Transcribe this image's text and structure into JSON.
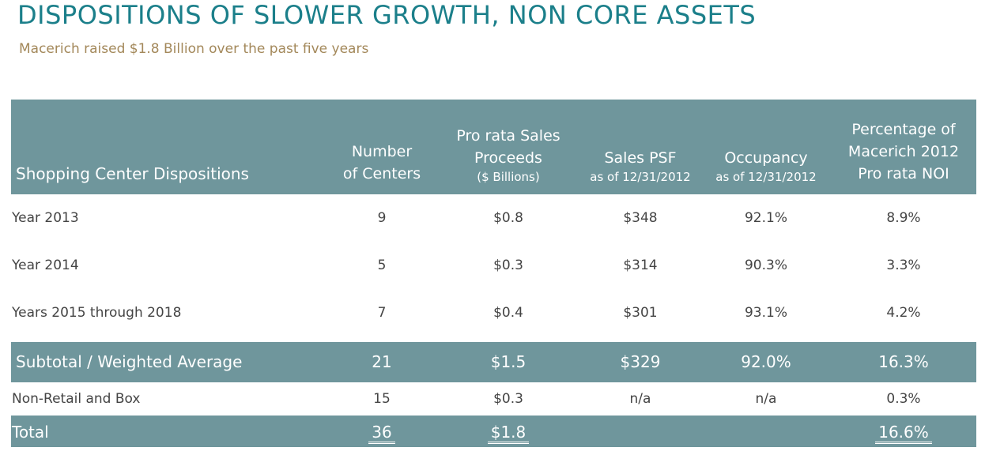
{
  "title": "DISPOSITIONS OF SLOWER GROWTH, NON CORE ASSETS",
  "subtitle": "Macerich raised $1.8 Billion over the past five years",
  "header": {
    "col0": "Shopping Center Dispositions",
    "col1_line1": "Number",
    "col1_line2": "of Centers",
    "col2_line1": "Pro rata Sales",
    "col2_line2": "Proceeds",
    "col2_line3": "($ Billions)",
    "col3_line1": "Sales PSF",
    "col3_line2": "as of 12/31/2012",
    "col4_line1": "Occupancy",
    "col4_line2": "as of 12/31/2012",
    "col5_line1": "Percentage of",
    "col5_line2": "Macerich 2012",
    "col5_line3": "Pro rata NOI"
  },
  "rows": [
    {
      "label": "Year 2013",
      "centers": "9",
      "proceeds": "$0.8",
      "psf": "$348",
      "occupancy": "92.1%",
      "noi": "8.9%"
    },
    {
      "label": "Year 2014",
      "centers": "5",
      "proceeds": "$0.3",
      "psf": "$314",
      "occupancy": "90.3%",
      "noi": "3.3%"
    },
    {
      "label": "Years 2015 through 2018",
      "centers": "7",
      "proceeds": "$0.4",
      "psf": "$301",
      "occupancy": "93.1%",
      "noi": "4.2%"
    }
  ],
  "subtotal": {
    "label": "Subtotal / Weighted Average",
    "centers": "21",
    "proceeds": "$1.5",
    "psf": "$329",
    "occupancy": "92.0%",
    "noi": "16.3%"
  },
  "nonretail": {
    "label": "Non-Retail and Box",
    "centers": "15",
    "proceeds": "$0.3",
    "psf": "n/a",
    "occupancy": "n/a",
    "noi": "0.3%"
  },
  "total": {
    "label": "Total",
    "centers": "36",
    "proceeds": "$1.8",
    "noi": "16.6%"
  },
  "colors": {
    "title": "#1b7f8a",
    "subtitle": "#a3885a",
    "band": "#6f969c"
  }
}
